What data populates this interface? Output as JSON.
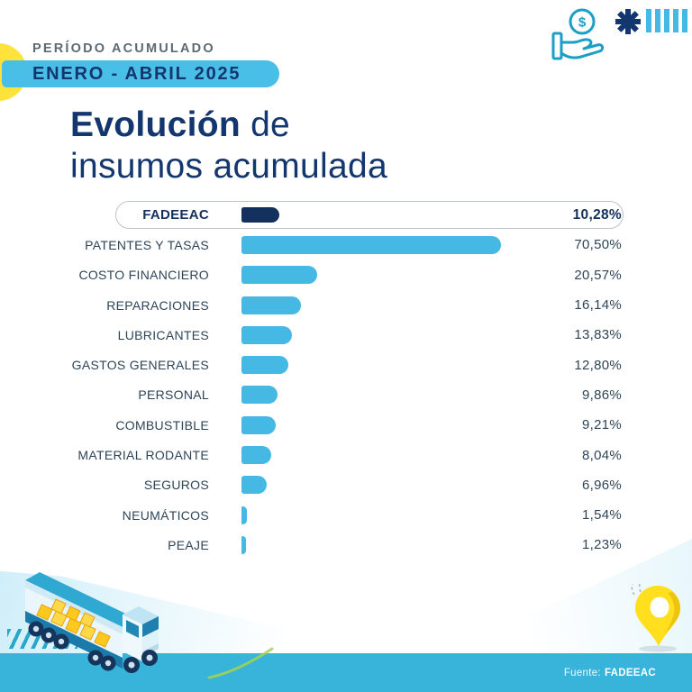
{
  "header": {
    "period_label": "PERÍODO ACUMULADO",
    "period_value": "ENERO - ABRIL 2025",
    "title_bold": "Evolución",
    "title_rest": "de",
    "title_line2": "insumos acumulada",
    "coin_symbol": "$"
  },
  "icons": {
    "top_right": [
      "hand-coin-icon",
      "asterisk-icon",
      "tally-bars-icon"
    ],
    "bottom_left": [
      "hatch-marks",
      "truck-illustration"
    ],
    "bottom_right": [
      "location-pin-icon",
      "green-swoosh"
    ]
  },
  "chart_data": {
    "type": "bar",
    "orientation": "horizontal",
    "title": "Evolución de insumos acumulada",
    "period": "ENERO - ABRIL 2025",
    "unit": "%",
    "xlim": [
      0,
      70.5
    ],
    "xmax": 70.5,
    "grid": false,
    "legend": false,
    "rows": [
      {
        "label": "FADEEAC",
        "value": 10.28,
        "display": "10,28%",
        "highlight": true
      },
      {
        "label": "PATENTES Y TASAS",
        "value": 70.5,
        "display": "70,50%",
        "highlight": false
      },
      {
        "label": "COSTO FINANCIERO",
        "value": 20.57,
        "display": "20,57%",
        "highlight": false
      },
      {
        "label": "REPARACIONES",
        "value": 16.14,
        "display": "16,14%",
        "highlight": false
      },
      {
        "label": "LUBRICANTES",
        "value": 13.83,
        "display": "13,83%",
        "highlight": false
      },
      {
        "label": "GASTOS GENERALES",
        "value": 12.8,
        "display": "12,80%",
        "highlight": false
      },
      {
        "label": "PERSONAL",
        "value": 9.86,
        "display": "9,86%",
        "highlight": false
      },
      {
        "label": "COMBUSTIBLE",
        "value": 9.21,
        "display": "9,21%",
        "highlight": false
      },
      {
        "label": "MATERIAL RODANTE",
        "value": 8.04,
        "display": "8,04%",
        "highlight": false
      },
      {
        "label": "SEGUROS",
        "value": 6.96,
        "display": "6,96%",
        "highlight": false
      },
      {
        "label": "NEUMÁTICOS",
        "value": 1.54,
        "display": "1,54%",
        "highlight": false
      },
      {
        "label": "PEAJE",
        "value": 1.23,
        "display": "1,23%",
        "highlight": false
      }
    ]
  },
  "footer": {
    "source_label": "Fuente:",
    "source_value": "FADEEAC"
  },
  "colors": {
    "accent_blue": "#45b9e3",
    "navy": "#14305c",
    "title_navy": "#14366e",
    "label_slate": "#2e4457",
    "pill_blue": "#49bee7",
    "band_teal": "#38b3d9",
    "yellow": "#ffe23c",
    "icon_teal": "#1b9fc6",
    "gray_label": "#5d6a73"
  }
}
